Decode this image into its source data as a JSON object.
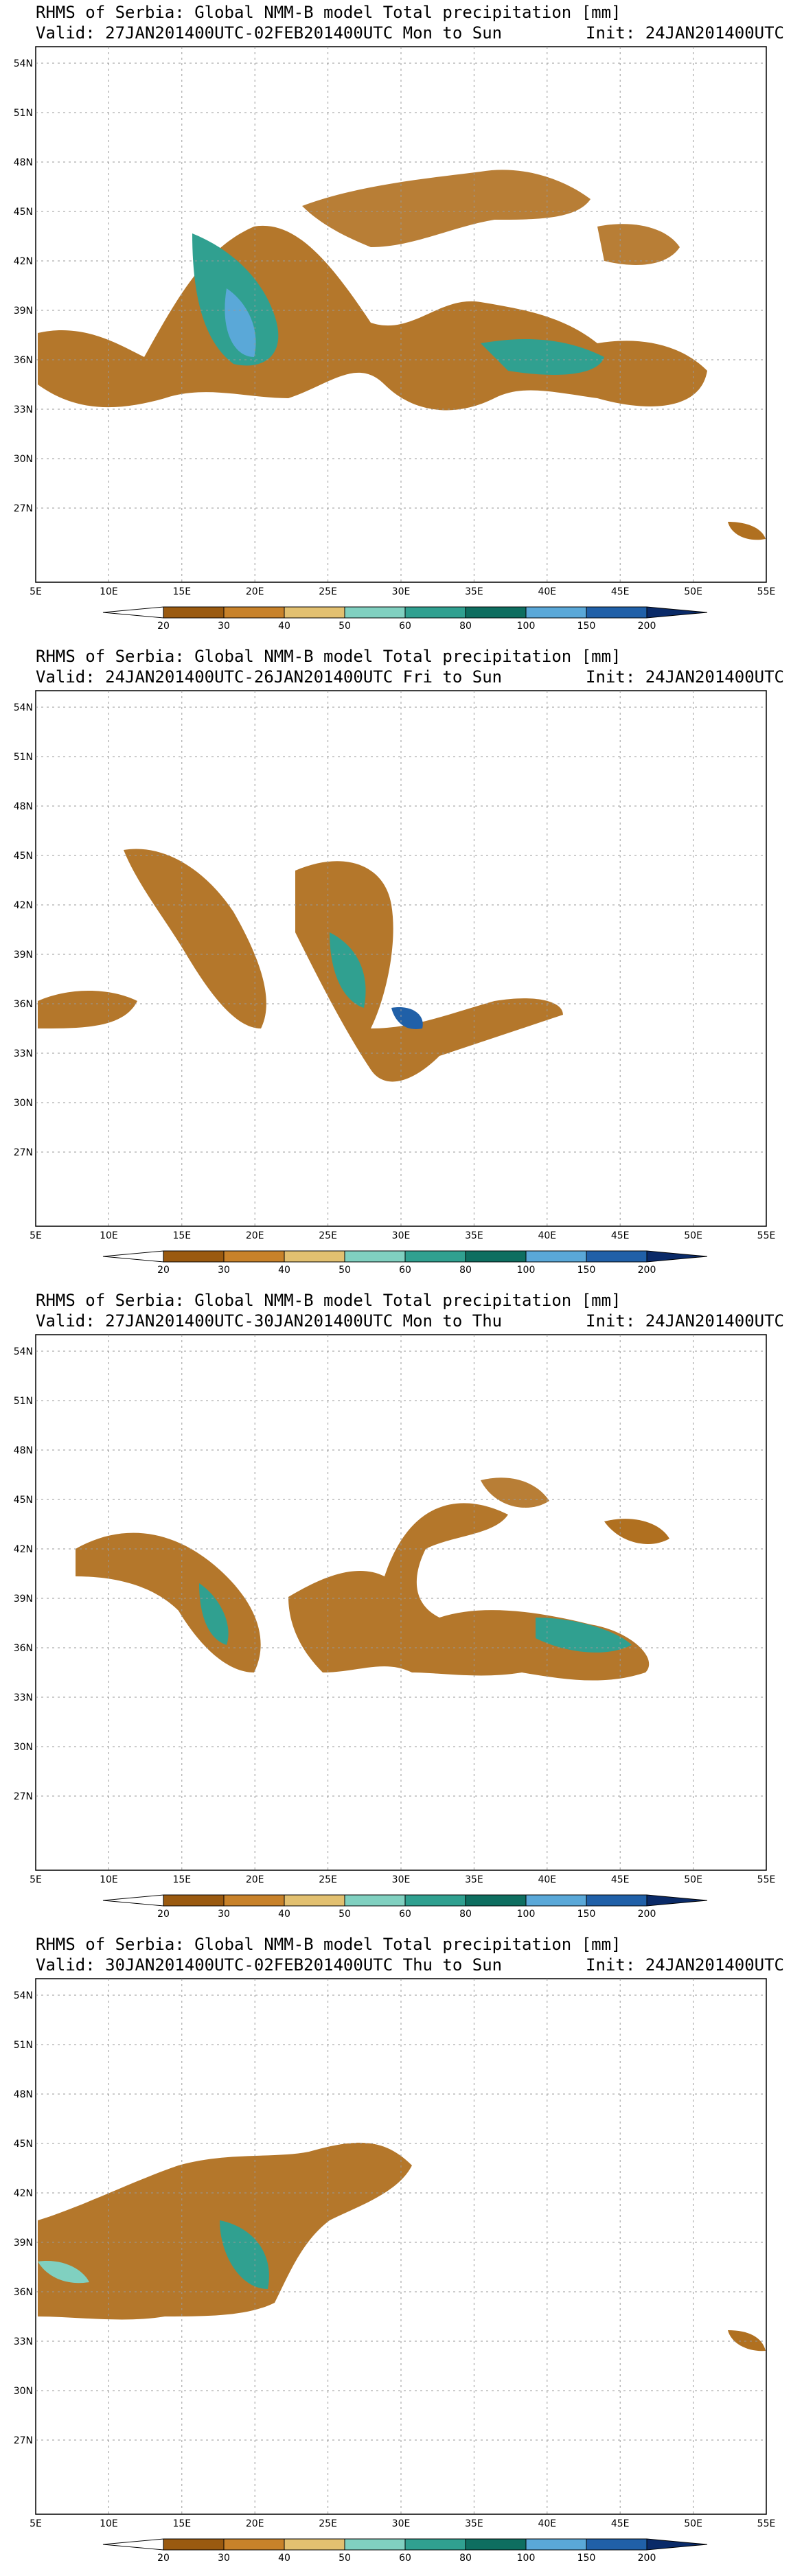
{
  "panels": [
    {
      "title": "RHMS of Serbia: Global NMM-B model Total precipitation [mm]",
      "valid": "Valid: 27JAN201400UTC-02FEB201400UTC Mon to Sun",
      "init": "Init: 24JAN201400UTC"
    },
    {
      "title": "RHMS of Serbia: Global NMM-B model Total precipitation [mm]",
      "valid": "Valid: 24JAN201400UTC-26JAN201400UTC Fri to Sun",
      "init": "Init: 24JAN201400UTC"
    },
    {
      "title": "RHMS of Serbia: Global NMM-B model Total precipitation [mm]",
      "valid": "Valid: 27JAN201400UTC-30JAN201400UTC Mon to Thu",
      "init": "Init: 24JAN201400UTC"
    },
    {
      "title": "RHMS of Serbia: Global NMM-B model Total precipitation [mm]",
      "valid": "Valid: 30JAN201400UTC-02FEB201400UTC Thu to Sun",
      "init": "Init: 24JAN201400UTC"
    }
  ],
  "lat_labels": [
    "54N",
    "51N",
    "48N",
    "45N",
    "42N",
    "39N",
    "36N",
    "33N",
    "30N",
    "27N"
  ],
  "lon_labels": [
    "5E",
    "10E",
    "15E",
    "20E",
    "25E",
    "30E",
    "35E",
    "40E",
    "45E",
    "50E",
    "55E"
  ],
  "colorbar": {
    "labels": [
      "20",
      "30",
      "40",
      "50",
      "60",
      "80",
      "100",
      "150",
      "200"
    ],
    "colors": [
      "#ffffff",
      "#9a5a10",
      "#c8822a",
      "#e2c070",
      "#80d0c0",
      "#30a090",
      "#0e6e60",
      "#5aa8d8",
      "#2060a8",
      "#0a2a68"
    ]
  }
}
